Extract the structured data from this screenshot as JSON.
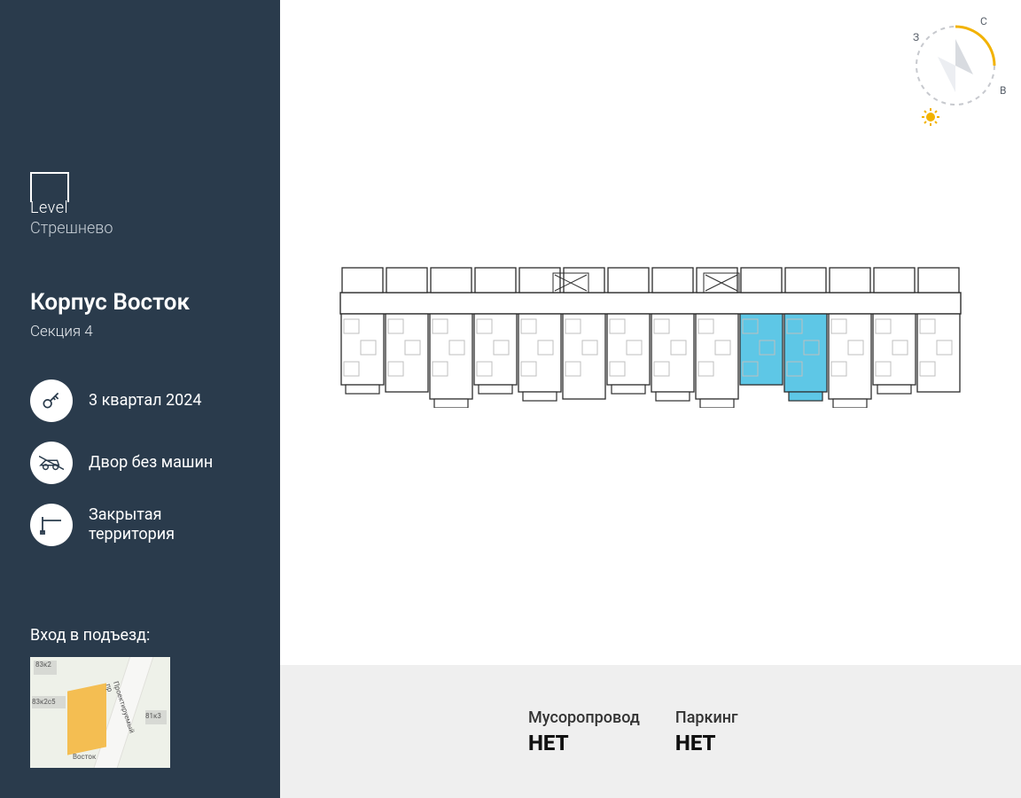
{
  "brand": {
    "name": "Level",
    "project": "Стрешнево"
  },
  "building": {
    "title": "Корпус Восток",
    "section": "Секция 4"
  },
  "features": [
    {
      "icon": "keys-icon",
      "label": "3 квартал 2024"
    },
    {
      "icon": "car-free-icon",
      "label": "Двор без машин"
    },
    {
      "icon": "gate-icon",
      "label": "Закрытая территория"
    }
  ],
  "entrance_label": "Вход в подъезд:",
  "minimap": {
    "bg": "#eef1e9",
    "highlight_color": "#f3bb4a",
    "labels": [
      "83к2",
      "83к2с5",
      "81к3",
      "Восток",
      "Восток",
      "Проектируемый пр"
    ]
  },
  "compass": {
    "directions": {
      "n": "С",
      "e": "В",
      "w": "З"
    },
    "ring_accent": "#f2b200",
    "ring_dash": "#c7c9ce",
    "sun_color": "#f2b200"
  },
  "floorplan": {
    "type": "floorplan",
    "units": 14,
    "highlighted_units_index": [
      9,
      10
    ],
    "highlight_color": "#5ec7e6",
    "wall_color": "#2d2d2d",
    "furniture_color": "#bfbfbf",
    "background": "#ffffff"
  },
  "footer": {
    "items": [
      {
        "label": "Мусоропровод",
        "value": "НЕТ"
      },
      {
        "label": "Паркинг",
        "value": "НЕТ"
      }
    ]
  },
  "colors": {
    "sidebar_bg": "#2a3b4c",
    "footer_bg": "#efefef",
    "text_light": "#ffffff"
  }
}
